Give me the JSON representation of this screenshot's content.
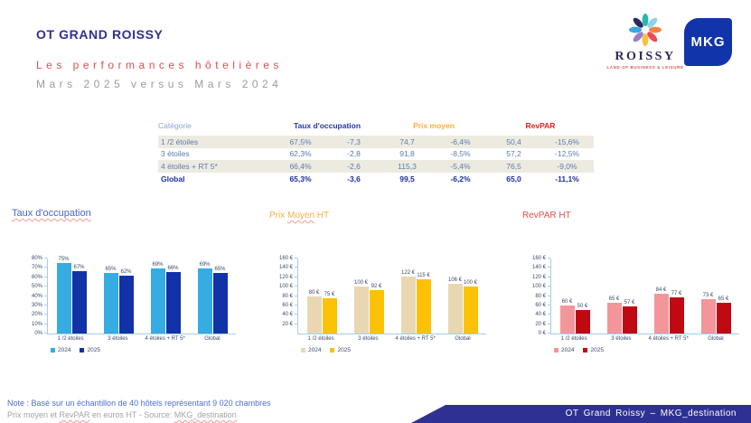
{
  "header": {
    "title": "OT GRAND ROISSY",
    "subtitle1": "Les performances hôtelières",
    "subtitle2": "Mars 2025 versus Mars 2024"
  },
  "logos": {
    "roissy_name": "ROISSY",
    "roissy_tagline": "LAND OF BUSINESS & LEISURE",
    "mkg_label": "MKG",
    "mkg_color": "#1134ab"
  },
  "table": {
    "headers": {
      "category": "Catégorie",
      "occupancy": "Taux d'occupation",
      "price": "Prix moyen",
      "revpar": "RevPAR"
    },
    "rows": [
      {
        "category": "1 /2 étoiles",
        "occ": "67,5%",
        "occ_diff": "-7,3",
        "price": "74,7",
        "price_diff": "-6,4%",
        "revpar": "50,4",
        "revpar_diff": "-15,6%"
      },
      {
        "category": "3 étoiles",
        "occ": "62,3%",
        "occ_diff": "-2,8",
        "price": "91,8",
        "price_diff": "-8,5%",
        "revpar": "57,2",
        "revpar_diff": "-12,5%"
      },
      {
        "category": "4 étoiles + RT 5*",
        "occ": "66,4%",
        "occ_diff": "-2,6",
        "price": "115,3",
        "price_diff": "-5,4%",
        "revpar": "76,5",
        "revpar_diff": "-9,0%"
      },
      {
        "category": "Global",
        "occ": "65,3%",
        "occ_diff": "-3,6",
        "price": "99,5",
        "price_diff": "-6,2%",
        "revpar": "65,0",
        "revpar_diff": "-11,1%"
      }
    ]
  },
  "sections": {
    "occ_title": "Taux d'occupation",
    "price_title_pre": "Prix ",
    "price_title_mid": "Moyen",
    "price_title_post": " HT",
    "revpar_title": "RevPAR HT"
  },
  "chart_data": [
    {
      "type": "bar",
      "title": "Taux d'occupation",
      "categories": [
        "1 /2 étoiles",
        "3 étoiles",
        "4 étoiles + RT 5*",
        "Global"
      ],
      "series": [
        {
          "name": "2024",
          "color": "#35ace2",
          "values": [
            75,
            65,
            69,
            69
          ],
          "labels": [
            "75%",
            "65%",
            "69%",
            "69%"
          ]
        },
        {
          "name": "2025",
          "color": "#1232a8",
          "values": [
            67,
            62,
            66,
            65
          ],
          "labels": [
            "67%",
            "62%",
            "66%",
            "65%"
          ]
        }
      ],
      "ylim": [
        0,
        80
      ],
      "yticks": [
        "80%",
        "70%",
        "60%",
        "50%",
        "40%",
        "30%",
        "20%",
        "10%",
        "0%"
      ],
      "tick_values": [
        80,
        70,
        60,
        50,
        40,
        30,
        20,
        10,
        0
      ],
      "grid": false,
      "legend_position": "bottom-left"
    },
    {
      "type": "bar",
      "title": "Prix Moyen HT",
      "categories": [
        "1 /2 étoiles",
        "3 étoiles",
        "4 étoiles + RT 5*",
        "Global"
      ],
      "series": [
        {
          "name": "2024",
          "color": "#e9d7b4",
          "values": [
            80,
            100,
            122,
            106
          ],
          "labels": [
            "80 €",
            "100 €",
            "122 €",
            "106 €"
          ]
        },
        {
          "name": "2025",
          "color": "#fdc106",
          "values": [
            75,
            92,
            115,
            100
          ],
          "labels": [
            "75 €",
            "92 €",
            "115 €",
            "100 €"
          ]
        }
      ],
      "ylim": [
        0,
        160
      ],
      "yticks": [
        "160 €",
        "140 €",
        "120 €",
        "100 €",
        "80 €",
        "60 €",
        "40 €",
        "20 €"
      ],
      "tick_values": [
        160,
        140,
        120,
        100,
        80,
        60,
        40,
        20
      ],
      "grid": false,
      "legend_position": "bottom-left"
    },
    {
      "type": "bar",
      "title": "RevPAR HT",
      "categories": [
        "1 /2 étoiles",
        "3 étoiles",
        "4 étoiles + RT 5*",
        "Global"
      ],
      "series": [
        {
          "name": "2024",
          "color": "#f2969b",
          "values": [
            60,
            65,
            84,
            73
          ],
          "labels": [
            "60 €",
            "65 €",
            "84 €",
            "73 €"
          ]
        },
        {
          "name": "2025",
          "color": "#c00a13",
          "values": [
            50,
            57,
            77,
            65
          ],
          "labels": [
            "50 €",
            "57 €",
            "77 €",
            "65 €"
          ]
        }
      ],
      "ylim": [
        0,
        160
      ],
      "yticks": [
        "160 €",
        "140 €",
        "120 €",
        "100 €",
        "80 €",
        "60 €",
        "40 €",
        "20 €",
        "0 €"
      ],
      "tick_values": [
        160,
        140,
        120,
        100,
        80,
        60,
        40,
        20,
        0
      ],
      "grid": false,
      "legend_position": "bottom-left"
    }
  ],
  "footer": {
    "note1": "Note : Basé sur un échantillon de 40 hôtels représentant 9 020 chambres",
    "note2_pre": "Prix moyen et ",
    "note2_u1": "RevPAR",
    "note2_mid": " en euros HT - Source: ",
    "note2_u2": "MKG_destination",
    "banner": "OT Grand Roissy – MKG_destination"
  }
}
